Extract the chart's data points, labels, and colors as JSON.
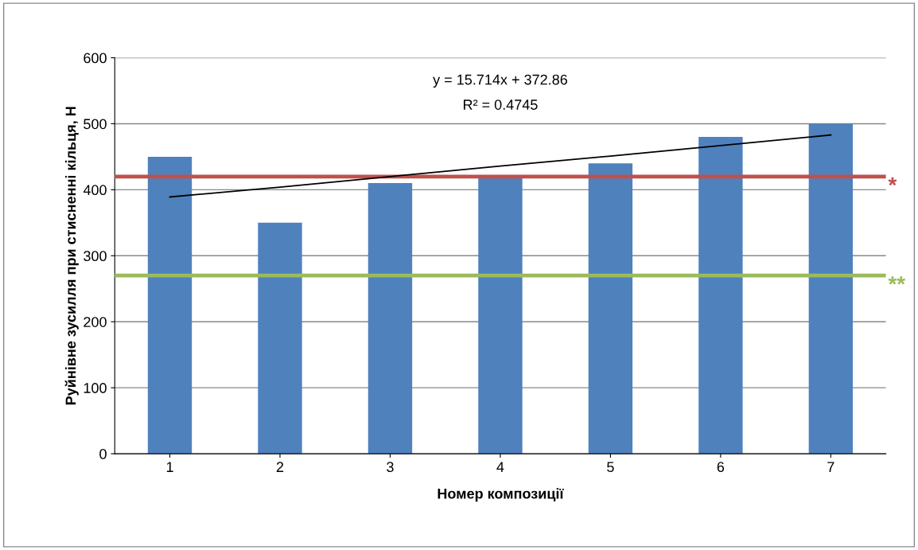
{
  "chart_data": {
    "type": "bar",
    "xlabel": "Номер композиції",
    "ylabel": "Руйнівне зусилля при стисненні кільця, Н",
    "categories": [
      "1",
      "2",
      "3",
      "4",
      "5",
      "6",
      "7"
    ],
    "series": [
      {
        "color": "#4f81bd",
        "values": [
          450,
          350,
          410,
          420,
          440,
          480,
          500
        ]
      },
      {
        "type": "line",
        "color": "#000000",
        "x": [
          "1",
          "2",
          "3",
          "4",
          "5",
          "6",
          "7"
        ],
        "values": [
          389,
          404,
          420,
          436,
          451,
          467,
          483
        ]
      }
    ],
    "ylim": [
      0,
      600
    ],
    "yticks": [
      0,
      100,
      200,
      300,
      400,
      500,
      600
    ],
    "grid": "y",
    "legend": false,
    "ref_lines": [
      {
        "axis": "y",
        "value": 420,
        "label": "*",
        "color": "#c0504d"
      },
      {
        "axis": "y",
        "value": 270,
        "label": "**",
        "color": "#9bbb59"
      }
    ],
    "annotations": [
      "y = 15.714x + 372.86",
      "R² = 0.4745"
    ]
  }
}
